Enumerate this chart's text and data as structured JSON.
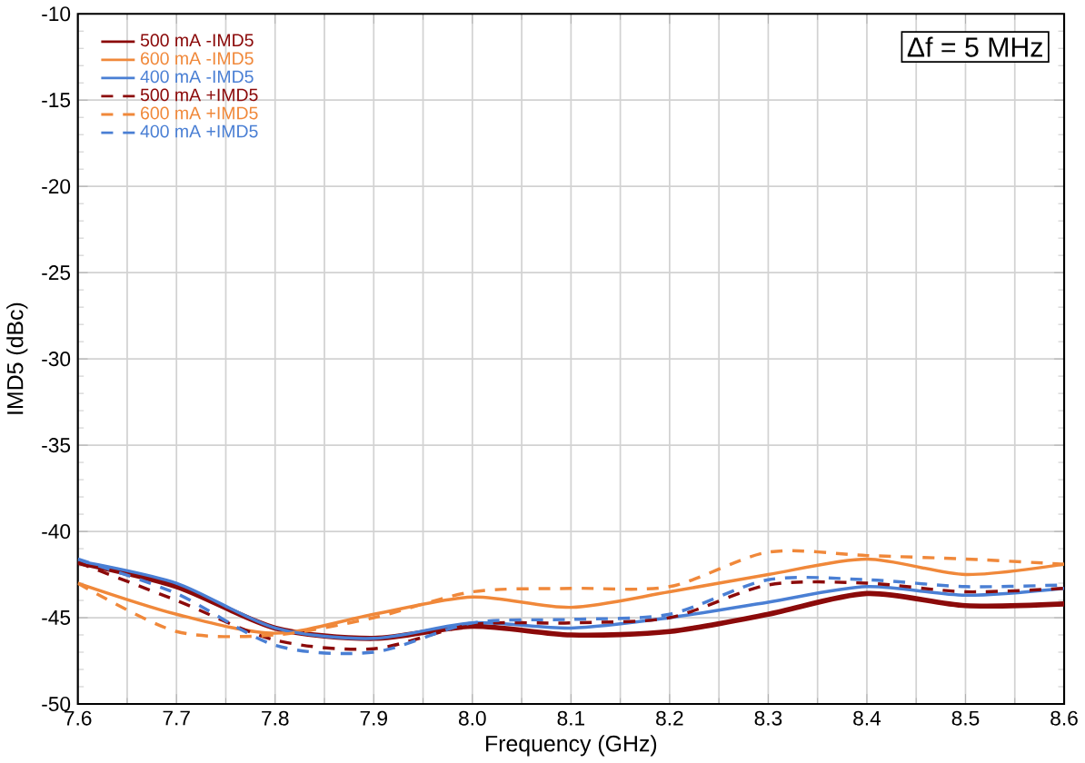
{
  "chart_data": {
    "type": "line",
    "xlabel": "Frequency (GHz)",
    "ylabel": "IMD5 (dBc)",
    "x": [
      7.6,
      7.7,
      7.8,
      7.9,
      8.0,
      8.1,
      8.2,
      8.3,
      8.4,
      8.5,
      8.6
    ],
    "series": [
      {
        "name": "500 mA -IMD5",
        "color": "#8b0a0a",
        "line_style": "solid",
        "values": [
          -41.8,
          -43.2,
          -45.6,
          -46.2,
          -45.5,
          -46.0,
          -45.8,
          -44.8,
          -43.6,
          -44.3,
          -44.2
        ]
      },
      {
        "name": "600 mA -IMD5",
        "color": "#f0883a",
        "line_style": "solid",
        "values": [
          -43.0,
          -44.8,
          -45.9,
          -44.8,
          -43.8,
          -44.4,
          -43.5,
          -42.5,
          -41.6,
          -42.5,
          -41.9
        ]
      },
      {
        "name": "400 mA -IMD5",
        "color": "#4a7fd4",
        "line_style": "solid",
        "values": [
          -41.7,
          -43.0,
          -45.6,
          -46.2,
          -45.3,
          -45.6,
          -45.0,
          -44.1,
          -43.2,
          -43.7,
          -43.3
        ]
      },
      {
        "name": "500 mA +IMD5",
        "color": "#8b0a0a",
        "line_style": "dashed",
        "values": [
          -41.8,
          -44.0,
          -46.3,
          -46.8,
          -45.4,
          -45.3,
          -45.0,
          -43.1,
          -43.0,
          -43.5,
          -43.3
        ]
      },
      {
        "name": "600 mA +IMD5",
        "color": "#f0883a",
        "line_style": "dashed",
        "values": [
          -43.0,
          -45.8,
          -46.0,
          -45.0,
          -43.5,
          -43.3,
          -43.2,
          -41.2,
          -41.4,
          -41.6,
          -41.9
        ]
      },
      {
        "name": "400 mA +IMD5",
        "color": "#4a7fd4",
        "line_style": "dashed",
        "values": [
          -41.6,
          -43.6,
          -46.6,
          -47.0,
          -45.3,
          -45.1,
          -44.8,
          -42.8,
          -42.8,
          -43.2,
          -43.1
        ]
      }
    ],
    "xlim": [
      7.6,
      8.6
    ],
    "ylim": [
      -50,
      -10
    ],
    "xticks": [
      7.6,
      7.7,
      7.8,
      7.9,
      {
        "value": 8.0,
        "label": "8.0"
      },
      8.1,
      8.2,
      8.3,
      8.4,
      8.5,
      8.6
    ],
    "yticks": [
      -50,
      -45,
      -40,
      -35,
      -30,
      -25,
      -20,
      -15,
      -10
    ],
    "grid": true,
    "legend": "top left",
    "marker": "none",
    "annotations": [
      "Δf = 5 MHz"
    ]
  }
}
